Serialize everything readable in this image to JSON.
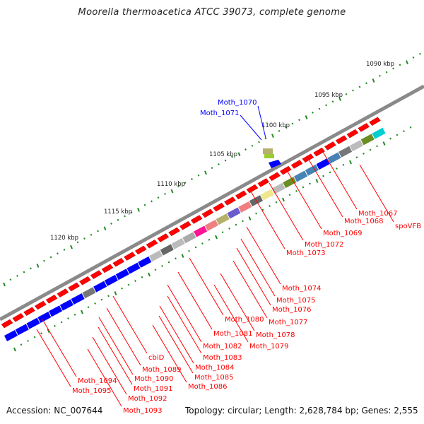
{
  "title": "Moorella thermoacetica ATCC 39073, complete genome",
  "footer": {
    "accession": "Accession: NC_007644",
    "summary": "Topology: circular; Length: 2,628,784 bp; Genes: 2,555"
  },
  "colors": {
    "cds": "#ff0000",
    "label_red": "#ff0000",
    "label_blue": "#0000ff",
    "tick": "#228b22",
    "backbone": "#888888"
  },
  "ruler_labels": [
    "1090 kbp",
    "1095 kbp",
    "1100 kbp",
    "1105 kbp",
    "1110 kbp",
    "1115 kbp",
    "1120 kbp"
  ],
  "blue_labels": [
    "Moth_1070",
    "Moth_1071"
  ],
  "red_labels": [
    "spoVFB",
    "Moth_1067",
    "Moth_1068",
    "Moth_1069",
    "Moth_1072",
    "Moth_1073",
    "Moth_1074",
    "Moth_1075",
    "Moth_1076",
    "Moth_1077",
    "Moth_1078",
    "Moth_1079",
    "Moth_1080",
    "Moth_1081",
    "Moth_1082",
    "Moth_1083",
    "Moth_1084",
    "Moth_1085",
    "Moth_1086",
    "cbiD",
    "Moth_1089",
    "Moth_1090",
    "Moth_1091",
    "Moth_1092",
    "Moth_1093",
    "Moth_1094",
    "Moth_1095"
  ]
}
